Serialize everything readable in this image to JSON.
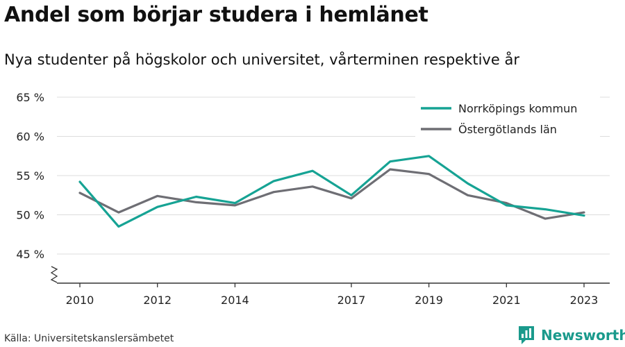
{
  "header": {
    "title": "Andel som börjar studera i hemlänet",
    "subtitle": "Nya studenter på högskolor och universitet, vårterminen respektive år"
  },
  "footer": {
    "source": "Källa: Universitetskanslersämbetet",
    "brand": "Newsworthy",
    "brand_icon": "bar-chart-speech-bubble-icon"
  },
  "colors": {
    "norrkoping": "#16a394",
    "ostergotland": "#6e6e74",
    "brand": "#1a9a8c",
    "grid": "#dddddd",
    "axis": "#333333"
  },
  "chart_data": {
    "type": "line",
    "title": "Andel som börjar studera i hemlänet",
    "subtitle": "Nya studenter på högskolor och universitet, vårterminen respektive år",
    "x": [
      2010,
      2011,
      2012,
      2013,
      2014,
      2015,
      2016,
      2017,
      2018,
      2019,
      2020,
      2021,
      2022,
      2023
    ],
    "x_tick_values": [
      2010,
      2012,
      2014,
      2017,
      2019,
      2021,
      2023
    ],
    "x_tick_labels": [
      "2010",
      "2012",
      "2014",
      "2017",
      "2019",
      "2021",
      "2023"
    ],
    "xlim": [
      2010,
      2023
    ],
    "y_tick_values": [
      45,
      50,
      55,
      60,
      65
    ],
    "y_tick_labels": [
      "45 %",
      "50 %",
      "55 %",
      "60 %",
      "65 %"
    ],
    "ylim": [
      45,
      65
    ],
    "y_axis_break": true,
    "grid": "horizontal",
    "legend_position": "top-right",
    "series": [
      {
        "name": "Norrköpings kommun",
        "color": "#16a394",
        "values": [
          54.2,
          48.5,
          51.0,
          52.3,
          51.5,
          54.3,
          55.6,
          52.5,
          56.8,
          57.5,
          54.0,
          51.2,
          50.7,
          49.9
        ]
      },
      {
        "name": "Östergötlands län",
        "color": "#6e6e74",
        "values": [
          52.8,
          50.3,
          52.4,
          51.6,
          51.2,
          52.9,
          53.6,
          52.1,
          55.8,
          55.2,
          52.5,
          51.5,
          49.5,
          50.3
        ]
      }
    ]
  }
}
